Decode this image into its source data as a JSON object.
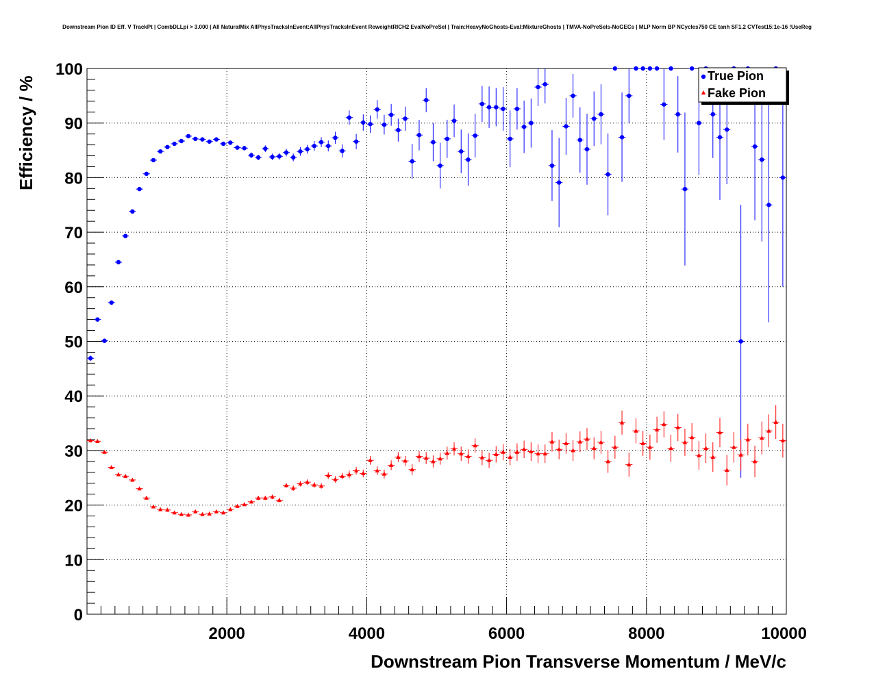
{
  "chart_data": {
    "type": "scatter",
    "title": "Downstream Pion ID Eff. V TrackPt | CombDLLpi > 3.000 | All NaturalMix AllPhysTracksInEvent:AllPhysTracksInEvent ReweightRICH2 EvalNoPreSel | Train:HeavyNoGhosts-Eval:MixtureGhosts | TMVA-NoPreSels-NoGECs | MLP Norm BP NCycles750 CE tanh SF1.2 CVTest15:1e-16 !UseReg",
    "xlabel": "Downstream Pion Transverse Momentum / MeV/c",
    "ylabel": "Efficiency / %",
    "xlim": [
      0,
      10000
    ],
    "ylim": [
      0,
      100
    ],
    "x_ticks": [
      "2000",
      "4000",
      "6000",
      "8000",
      "10000"
    ],
    "y_ticks": [
      "0",
      "10",
      "20",
      "30",
      "40",
      "50",
      "60",
      "70",
      "80",
      "90",
      "100"
    ],
    "grid": true,
    "legend_position": "top-right",
    "series": [
      {
        "name": "True Pion",
        "color": "#0000ff",
        "marker": "circle",
        "x": [
          50,
          150,
          250,
          350,
          450,
          550,
          650,
          750,
          850,
          950,
          1050,
          1150,
          1250,
          1350,
          1450,
          1550,
          1650,
          1750,
          1850,
          1950,
          2050,
          2150,
          2250,
          2350,
          2450,
          2550,
          2650,
          2750,
          2850,
          2950,
          3050,
          3150,
          3250,
          3350,
          3450,
          3550,
          3650,
          3750,
          3850,
          3950,
          4050,
          4150,
          4250,
          4350,
          4450,
          4550,
          4650,
          4750,
          4850,
          4950,
          5050,
          5150,
          5250,
          5350,
          5450,
          5550,
          5650,
          5750,
          5850,
          5950,
          6050,
          6150,
          6250,
          6350,
          6450,
          6550,
          6650,
          6750,
          6850,
          6950,
          7050,
          7150,
          7250,
          7350,
          7450,
          7550,
          7650,
          7750,
          7850,
          7950,
          8050,
          8150,
          8250,
          8350,
          8450,
          8550,
          8650,
          8750,
          8850,
          8950,
          9050,
          9150,
          9250,
          9350,
          9450,
          9550,
          9650,
          9750,
          9850,
          9950
        ],
        "y": [
          46.9,
          54.0,
          50.1,
          57.1,
          64.5,
          69.3,
          73.8,
          77.9,
          80.7,
          83.2,
          84.8,
          85.6,
          86.2,
          86.7,
          87.6,
          87.1,
          87.0,
          86.6,
          87.0,
          86.2,
          86.4,
          85.5,
          85.4,
          84.1,
          83.7,
          85.3,
          83.8,
          83.9,
          84.6,
          83.7,
          84.8,
          85.2,
          85.8,
          86.5,
          85.8,
          87.3,
          84.9,
          91.0,
          86.6,
          90.1,
          89.8,
          92.5,
          89.7,
          91.5,
          88.7,
          90.8,
          83.0,
          87.8,
          94.2,
          86.5,
          82.2,
          87.1,
          90.4,
          84.8,
          83.3,
          87.7,
          93.5,
          92.9,
          92.9,
          92.6,
          87.1,
          92.6,
          89.3,
          90.0,
          96.6,
          97.1,
          82.2,
          79.1,
          89.4,
          95.0,
          86.9,
          85.2,
          90.8,
          91.6,
          80.6,
          100.0,
          87.4,
          95.0,
          100.0,
          100.0,
          100.0,
          100.0,
          93.4,
          100.0,
          91.6,
          77.9,
          100.0,
          90.0,
          100.0,
          91.6,
          87.4,
          88.8,
          100.0,
          50.0,
          100.0,
          85.7,
          83.3,
          75.0,
          100.0,
          80.0
        ],
        "y_err": [
          0.5,
          0.4,
          0.4,
          0.4,
          0.4,
          0.3,
          0.3,
          0.3,
          0.3,
          0.3,
          0.3,
          0.3,
          0.3,
          0.3,
          0.3,
          0.3,
          0.3,
          0.3,
          0.3,
          0.3,
          0.4,
          0.4,
          0.4,
          0.5,
          0.5,
          0.6,
          0.6,
          0.6,
          0.7,
          0.7,
          0.8,
          0.8,
          0.9,
          0.9,
          1.0,
          1.1,
          1.2,
          1.3,
          1.4,
          1.5,
          1.6,
          1.7,
          1.8,
          2.0,
          2.1,
          2.2,
          3.2,
          2.8,
          2.2,
          3.5,
          4.2,
          3.5,
          3.0,
          4.0,
          4.8,
          4.0,
          3.3,
          3.8,
          3.5,
          4.0,
          5.2,
          3.8,
          4.8,
          4.5,
          3.5,
          3.5,
          6.5,
          8.2,
          5.2,
          4.0,
          6.0,
          6.5,
          5.0,
          5.5,
          7.5,
          0,
          8.2,
          5.0,
          0,
          0,
          0,
          0,
          6.5,
          0,
          7.0,
          14.0,
          0,
          9.5,
          0,
          8.0,
          11.5,
          10.0,
          0,
          25.0,
          0,
          13.5,
          15.0,
          21.5,
          0,
          20.0
        ]
      },
      {
        "name": "Fake Pion",
        "color": "#ff0000",
        "marker": "triangle",
        "x": [
          50,
          150,
          250,
          350,
          450,
          550,
          650,
          750,
          850,
          950,
          1050,
          1150,
          1250,
          1350,
          1450,
          1550,
          1650,
          1750,
          1850,
          1950,
          2050,
          2150,
          2250,
          2350,
          2450,
          2550,
          2650,
          2750,
          2850,
          2950,
          3050,
          3150,
          3250,
          3350,
          3450,
          3550,
          3650,
          3750,
          3850,
          3950,
          4050,
          4150,
          4250,
          4350,
          4450,
          4550,
          4650,
          4750,
          4850,
          4950,
          5050,
          5150,
          5250,
          5350,
          5450,
          5550,
          5650,
          5750,
          5850,
          5950,
          6050,
          6150,
          6250,
          6350,
          6450,
          6550,
          6650,
          6750,
          6850,
          6950,
          7050,
          7150,
          7250,
          7350,
          7450,
          7550,
          7650,
          7750,
          7850,
          7950,
          8050,
          8150,
          8250,
          8350,
          8450,
          8550,
          8650,
          8750,
          8850,
          8950,
          9050,
          9150,
          9250,
          9350,
          9450,
          9550,
          9650,
          9750,
          9850,
          9950
        ],
        "y": [
          31.8,
          31.7,
          29.7,
          26.9,
          25.6,
          25.3,
          24.6,
          23.0,
          21.3,
          19.7,
          19.2,
          19.1,
          18.6,
          18.3,
          18.2,
          18.8,
          18.3,
          18.4,
          18.8,
          18.6,
          19.2,
          19.8,
          20.1,
          20.6,
          21.3,
          21.3,
          21.5,
          20.9,
          23.6,
          23.1,
          23.9,
          24.2,
          23.7,
          23.5,
          25.4,
          24.7,
          25.3,
          25.6,
          26.3,
          25.8,
          28.2,
          26.3,
          25.7,
          27.3,
          28.8,
          28.1,
          26.5,
          28.9,
          28.6,
          28.0,
          28.5,
          29.5,
          30.3,
          29.4,
          28.9,
          30.9,
          28.7,
          28.2,
          29.3,
          29.7,
          28.8,
          29.7,
          30.2,
          29.8,
          29.4,
          29.4,
          31.6,
          30.2,
          31.3,
          30.0,
          31.6,
          32.1,
          30.4,
          31.5,
          28.0,
          30.6,
          35.1,
          27.4,
          33.6,
          31.3,
          30.6,
          33.8,
          34.8,
          30.4,
          34.2,
          31.5,
          32.4,
          29.1,
          30.4,
          28.8,
          33.3,
          26.4,
          30.6,
          29.2,
          32.0,
          28.0,
          32.3,
          33.6,
          35.2,
          31.8
        ],
        "y_err": [
          0.3,
          0.3,
          0.3,
          0.3,
          0.3,
          0.3,
          0.3,
          0.3,
          0.3,
          0.3,
          0.3,
          0.3,
          0.3,
          0.3,
          0.3,
          0.3,
          0.3,
          0.3,
          0.3,
          0.3,
          0.3,
          0.3,
          0.3,
          0.3,
          0.4,
          0.4,
          0.4,
          0.4,
          0.4,
          0.5,
          0.5,
          0.5,
          0.5,
          0.5,
          0.6,
          0.6,
          0.6,
          0.7,
          0.7,
          0.7,
          0.8,
          0.8,
          0.8,
          0.9,
          0.9,
          0.9,
          1.0,
          1.0,
          1.1,
          1.1,
          1.1,
          1.2,
          1.2,
          1.3,
          1.3,
          1.3,
          1.4,
          1.4,
          1.5,
          1.5,
          1.5,
          1.6,
          1.6,
          1.7,
          1.7,
          1.7,
          1.8,
          1.8,
          1.9,
          1.9,
          1.9,
          2.0,
          2.0,
          2.1,
          2.1,
          2.1,
          2.2,
          2.2,
          2.3,
          2.3,
          2.3,
          2.4,
          2.4,
          2.5,
          2.5,
          2.5,
          2.6,
          2.6,
          2.7,
          2.7,
          2.7,
          2.8,
          2.8,
          2.9,
          2.9,
          2.9,
          3.0,
          3.0,
          3.1,
          3.1
        ]
      }
    ]
  }
}
